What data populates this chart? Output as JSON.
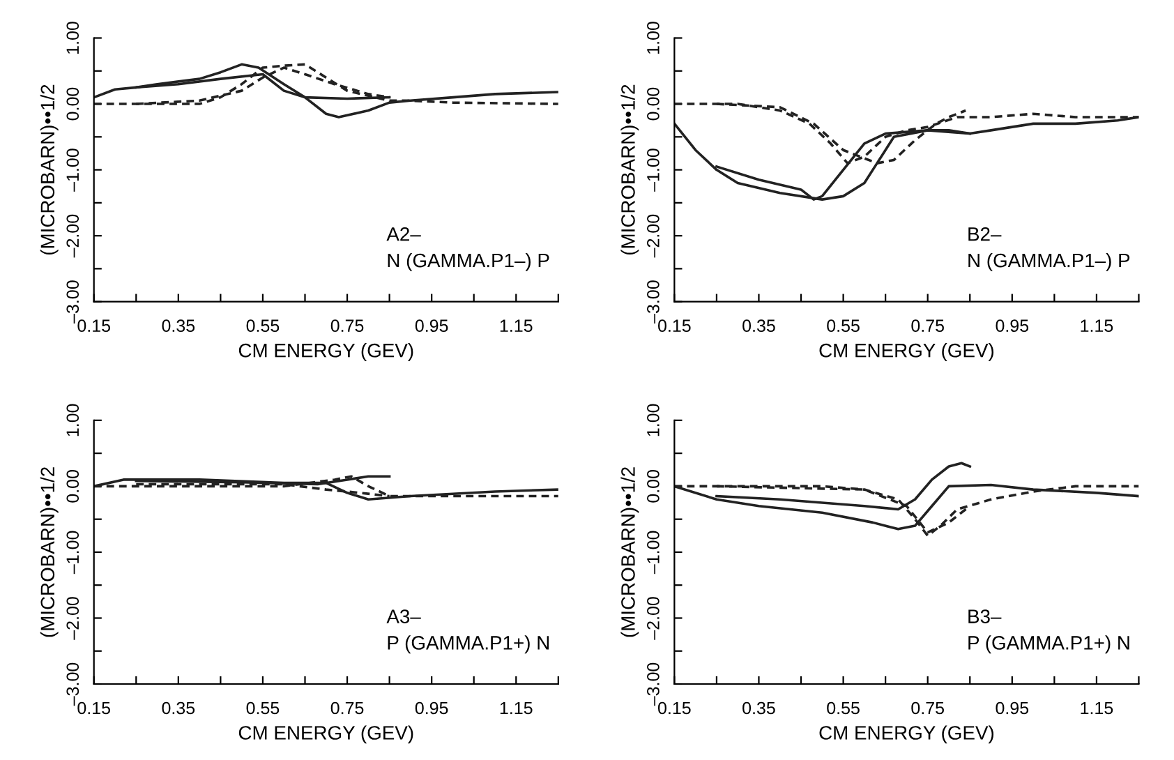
{
  "chart_data": [
    {
      "type": "line",
      "xlabel": "CM ENERGY (GEV)",
      "ylabel": "(MICROBARN)••1/2",
      "annotations": [
        "A2–",
        "N (GAMMA.P1–) P"
      ],
      "xlim": [
        0.15,
        1.25
      ],
      "ylim": [
        -3,
        1
      ],
      "xticks": [
        0.15,
        {
          "value": 0.25,
          "label": null
        },
        0.35,
        {
          "value": 0.45,
          "label": null
        },
        0.55,
        {
          "value": 0.65,
          "label": null
        },
        0.75,
        {
          "value": 0.85,
          "label": null
        },
        0.95,
        {
          "value": 1.05,
          "label": null
        },
        1.15,
        {
          "value": 1.25,
          "label": null
        }
      ],
      "yticks": [
        {
          "value": -3,
          "label": "–3.00"
        },
        {
          "value": -2.5,
          "label": null
        },
        {
          "value": -2,
          "label": "–2.00"
        },
        {
          "value": -1.5,
          "label": null
        },
        {
          "value": -1,
          "label": "–1.00"
        },
        {
          "value": -0.5,
          "label": null
        },
        {
          "value": 0,
          "label": "0.00"
        },
        {
          "value": 0.5,
          "label": null
        },
        {
          "value": 1,
          "label": "1.00"
        }
      ],
      "grid": false,
      "legend": false,
      "series": [
        {
          "color": "#222222",
          "line_style": "solid",
          "x": [
            0.15,
            0.2,
            0.25,
            0.3,
            0.4,
            0.45,
            0.5,
            0.54,
            0.6,
            0.65,
            0.7,
            0.73,
            0.8,
            0.85,
            0.9,
            1.0,
            1.1,
            1.25
          ],
          "values": [
            0.1,
            0.22,
            0.25,
            0.3,
            0.38,
            0.48,
            0.6,
            0.55,
            0.3,
            0.1,
            -0.15,
            -0.2,
            -0.1,
            0.02,
            0.05,
            0.1,
            0.15,
            0.18
          ]
        },
        {
          "color": "#222222",
          "line_style": "solid",
          "x": [
            0.25,
            0.35,
            0.45,
            0.55,
            0.6,
            0.65,
            0.75,
            0.85
          ],
          "values": [
            0.25,
            0.3,
            0.38,
            0.45,
            0.2,
            0.1,
            0.08,
            0.1
          ]
        },
        {
          "color": "#222222",
          "line_style": "dashed",
          "x": [
            0.15,
            0.4,
            0.45,
            0.5,
            0.55,
            0.6,
            0.65,
            0.7,
            0.75,
            0.85,
            0.9,
            1.0,
            1.25
          ],
          "values": [
            0,
            0,
            0.1,
            0.3,
            0.55,
            0.58,
            0.6,
            0.4,
            0.2,
            0.05,
            0.05,
            0.02,
            0
          ]
        },
        {
          "color": "#222222",
          "line_style": "dashed",
          "x": [
            0.25,
            0.4,
            0.5,
            0.55,
            0.6,
            0.65,
            0.72,
            0.8,
            0.85
          ],
          "values": [
            0,
            0.05,
            0.2,
            0.4,
            0.55,
            0.45,
            0.3,
            0.15,
            0.1
          ]
        }
      ]
    },
    {
      "type": "line",
      "xlabel": "CM ENERGY (GEV)",
      "ylabel": "(MICROBARN)••1/2",
      "annotations": [
        "B2–",
        "N (GAMMA.P1–) P"
      ],
      "xlim": [
        0.15,
        1.25
      ],
      "ylim": [
        -3,
        1
      ],
      "xticks": [
        0.15,
        {
          "value": 0.25,
          "label": null
        },
        0.35,
        {
          "value": 0.45,
          "label": null
        },
        0.55,
        {
          "value": 0.65,
          "label": null
        },
        0.75,
        {
          "value": 0.85,
          "label": null
        },
        0.95,
        {
          "value": 1.05,
          "label": null
        },
        1.15,
        {
          "value": 1.25,
          "label": null
        }
      ],
      "yticks": [
        {
          "value": -3,
          "label": "–3.00"
        },
        {
          "value": -2.5,
          "label": null
        },
        {
          "value": -2,
          "label": "–2.00"
        },
        {
          "value": -1.5,
          "label": null
        },
        {
          "value": -1,
          "label": "–1.00"
        },
        {
          "value": -0.5,
          "label": null
        },
        {
          "value": 0,
          "label": "0.00"
        },
        {
          "value": 0.5,
          "label": null
        },
        {
          "value": 1,
          "label": "1.00"
        }
      ],
      "grid": false,
      "legend": false,
      "series": [
        {
          "color": "#222222",
          "line_style": "solid",
          "x": [
            0.15,
            0.2,
            0.25,
            0.3,
            0.4,
            0.5,
            0.55,
            0.6,
            0.63,
            0.67,
            0.75,
            0.8,
            0.85,
            0.9,
            1.0,
            1.1,
            1.2,
            1.25
          ],
          "values": [
            -0.3,
            -0.7,
            -1.0,
            -1.2,
            -1.35,
            -1.45,
            -1.4,
            -1.2,
            -0.9,
            -0.5,
            -0.4,
            -0.4,
            -0.45,
            -0.4,
            -0.3,
            -0.3,
            -0.25,
            -0.2
          ]
        },
        {
          "color": "#222222",
          "line_style": "solid",
          "x": [
            0.25,
            0.35,
            0.45,
            0.48,
            0.5,
            0.55,
            0.6,
            0.65,
            0.75,
            0.85
          ],
          "values": [
            -0.95,
            -1.15,
            -1.3,
            -1.45,
            -1.4,
            -1.0,
            -0.6,
            -0.45,
            -0.4,
            -0.45
          ]
        },
        {
          "color": "#222222",
          "line_style": "dashed",
          "x": [
            0.15,
            0.3,
            0.4,
            0.47,
            0.52,
            0.56,
            0.6,
            0.65,
            0.7,
            0.75,
            0.82,
            0.9,
            1.0,
            1.1,
            1.25
          ],
          "values": [
            0,
            0,
            -0.1,
            -0.3,
            -0.6,
            -0.9,
            -0.8,
            -0.5,
            -0.4,
            -0.35,
            -0.2,
            -0.2,
            -0.15,
            -0.2,
            -0.2
          ]
        },
        {
          "color": "#222222",
          "line_style": "dashed",
          "x": [
            0.25,
            0.4,
            0.48,
            0.55,
            0.63,
            0.67,
            0.72,
            0.77,
            0.8,
            0.84
          ],
          "values": [
            0,
            -0.05,
            -0.3,
            -0.7,
            -0.9,
            -0.85,
            -0.55,
            -0.3,
            -0.2,
            -0.1
          ]
        }
      ]
    },
    {
      "type": "line",
      "xlabel": "CM ENERGY (GEV)",
      "ylabel": "(MICROBARN)••1/2",
      "annotations": [
        "A3–",
        "P (GAMMA.P1+) N"
      ],
      "xlim": [
        0.15,
        1.25
      ],
      "ylim": [
        -3,
        1
      ],
      "xticks": [
        0.15,
        {
          "value": 0.25,
          "label": null
        },
        0.35,
        {
          "value": 0.45,
          "label": null
        },
        0.55,
        {
          "value": 0.65,
          "label": null
        },
        0.75,
        {
          "value": 0.85,
          "label": null
        },
        0.95,
        {
          "value": 1.05,
          "label": null
        },
        1.15,
        {
          "value": 1.25,
          "label": null
        }
      ],
      "yticks": [
        {
          "value": -3,
          "label": "–3.00"
        },
        {
          "value": -2.5,
          "label": null
        },
        {
          "value": -2,
          "label": "–2.00"
        },
        {
          "value": -1.5,
          "label": null
        },
        {
          "value": -1,
          "label": "–1.00"
        },
        {
          "value": -0.5,
          "label": null
        },
        {
          "value": 0,
          "label": "0.00"
        },
        {
          "value": 0.5,
          "label": null
        },
        {
          "value": 1,
          "label": "1.00"
        }
      ],
      "grid": false,
      "legend": false,
      "series": [
        {
          "color": "#222222",
          "line_style": "solid",
          "x": [
            0.15,
            0.22,
            0.4,
            0.6,
            0.7,
            0.75,
            0.8,
            0.9,
            1.1,
            1.25
          ],
          "values": [
            0,
            0.1,
            0.1,
            0.05,
            0.05,
            -0.1,
            -0.2,
            -0.15,
            -0.08,
            -0.05
          ]
        },
        {
          "color": "#222222",
          "line_style": "solid",
          "x": [
            0.25,
            0.5,
            0.68,
            0.75,
            0.8,
            0.85
          ],
          "values": [
            0.08,
            0.06,
            0.03,
            0.1,
            0.15,
            0.15
          ]
        },
        {
          "color": "#222222",
          "line_style": "dashed",
          "x": [
            0.15,
            0.6,
            0.72,
            0.76,
            0.8,
            0.85,
            0.95,
            1.25
          ],
          "values": [
            0,
            0,
            0.1,
            0.15,
            0,
            -0.15,
            -0.15,
            -0.15
          ]
        },
        {
          "color": "#222222",
          "line_style": "dashed",
          "x": [
            0.25,
            0.6,
            0.7,
            0.78,
            0.85
          ],
          "values": [
            0.03,
            0.03,
            -0.05,
            -0.1,
            -0.15
          ]
        }
      ]
    },
    {
      "type": "line",
      "xlabel": "CM ENERGY (GEV)",
      "ylabel": "(MICROBARN)••1/2",
      "annotations": [
        "B3–",
        "P (GAMMA.P1+) N"
      ],
      "xlim": [
        0.15,
        1.25
      ],
      "ylim": [
        -3,
        1
      ],
      "xticks": [
        0.15,
        {
          "value": 0.25,
          "label": null
        },
        0.35,
        {
          "value": 0.45,
          "label": null
        },
        0.55,
        {
          "value": 0.65,
          "label": null
        },
        0.75,
        {
          "value": 0.85,
          "label": null
        },
        0.95,
        {
          "value": 1.05,
          "label": null
        },
        1.15,
        {
          "value": 1.25,
          "label": null
        }
      ],
      "yticks": [
        {
          "value": -3,
          "label": "–3.00"
        },
        {
          "value": -2.5,
          "label": null
        },
        {
          "value": -2,
          "label": "–2.00"
        },
        {
          "value": -1.5,
          "label": null
        },
        {
          "value": -1,
          "label": "–1.00"
        },
        {
          "value": -0.5,
          "label": null
        },
        {
          "value": 0,
          "label": "0.00"
        },
        {
          "value": 0.5,
          "label": null
        },
        {
          "value": 1,
          "label": "1.00"
        }
      ],
      "grid": false,
      "legend": false,
      "series": [
        {
          "color": "#222222",
          "line_style": "solid",
          "x": [
            0.15,
            0.25,
            0.35,
            0.5,
            0.62,
            0.68,
            0.72,
            0.76,
            0.8,
            0.9,
            1.0,
            1.15,
            1.25
          ],
          "values": [
            0,
            -0.2,
            -0.3,
            -0.4,
            -0.55,
            -0.65,
            -0.6,
            -0.3,
            0,
            0.02,
            -0.05,
            -0.1,
            -0.15
          ]
        },
        {
          "color": "#222222",
          "line_style": "solid",
          "x": [
            0.25,
            0.4,
            0.6,
            0.68,
            0.72,
            0.76,
            0.8,
            0.83,
            0.85
          ],
          "values": [
            -0.15,
            -0.2,
            -0.3,
            -0.35,
            -0.2,
            0.1,
            0.3,
            0.35,
            0.3
          ]
        },
        {
          "color": "#222222",
          "line_style": "dashed",
          "x": [
            0.15,
            0.5,
            0.6,
            0.68,
            0.72,
            0.75,
            0.78,
            0.82,
            0.9,
            1.0,
            1.1,
            1.25
          ],
          "values": [
            0,
            0,
            -0.05,
            -0.2,
            -0.5,
            -0.75,
            -0.6,
            -0.35,
            -0.2,
            -0.08,
            0,
            0
          ]
        },
        {
          "color": "#222222",
          "line_style": "dashed",
          "x": [
            0.25,
            0.6,
            0.7,
            0.75,
            0.8,
            0.85
          ],
          "values": [
            0,
            -0.05,
            -0.3,
            -0.7,
            -0.55,
            -0.3
          ]
        }
      ]
    }
  ]
}
